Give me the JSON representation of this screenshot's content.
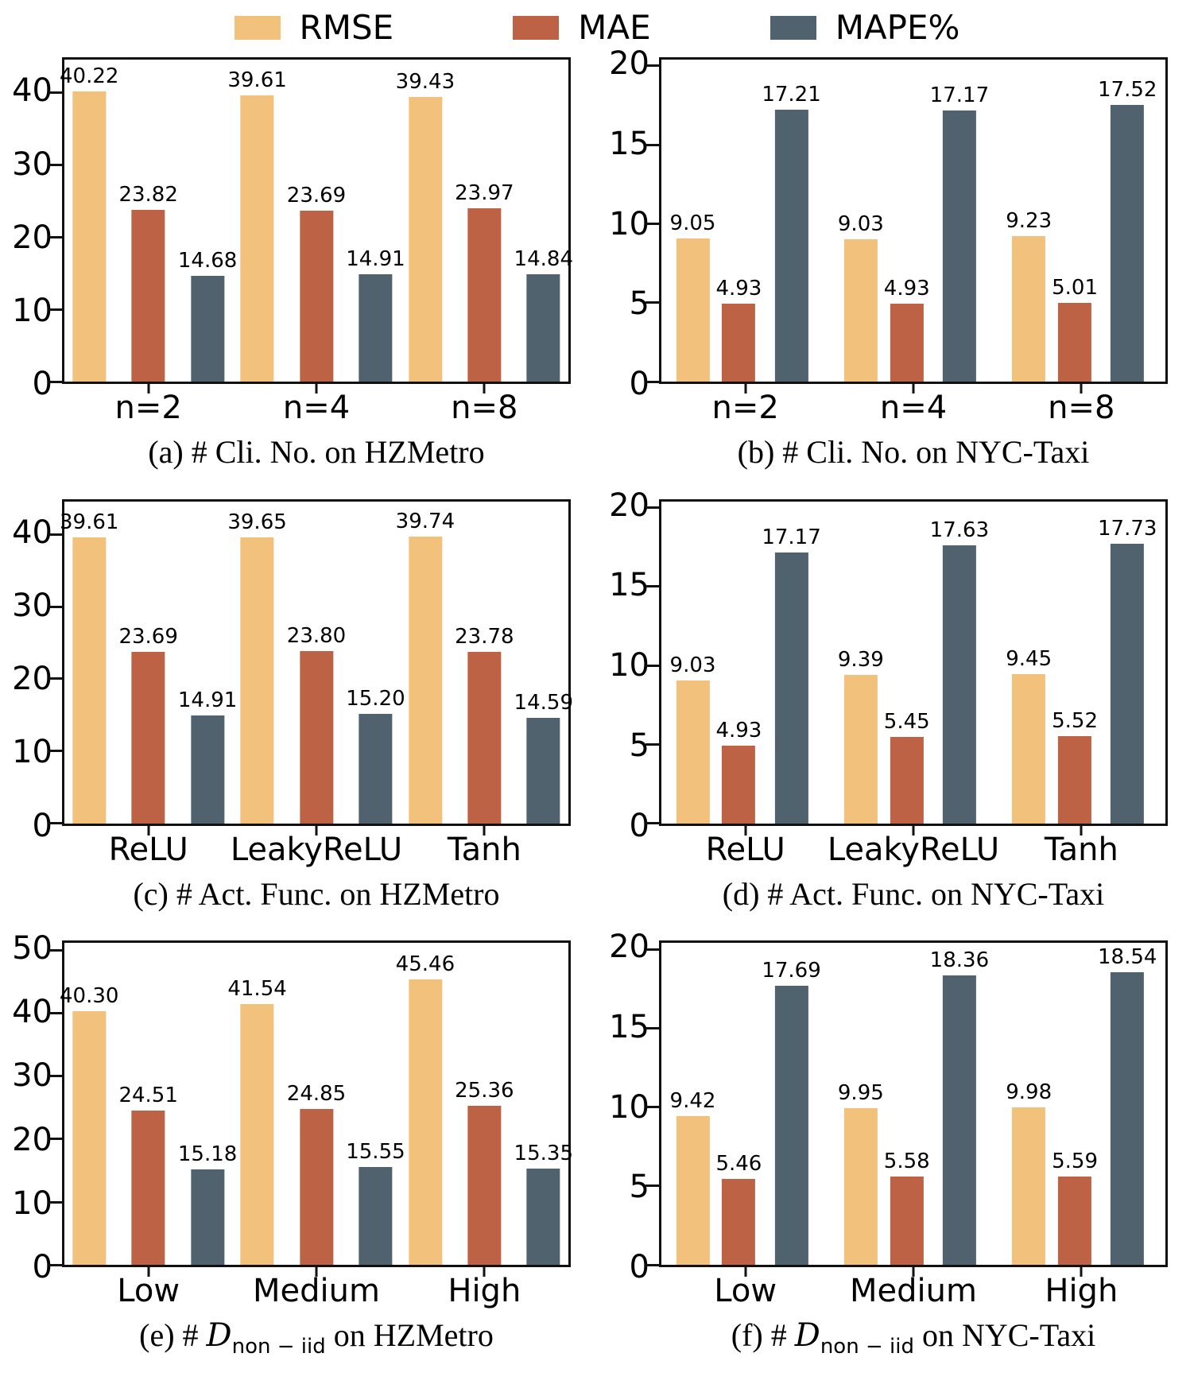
{
  "figure": {
    "background": "#ffffff"
  },
  "legend": {
    "items": [
      {
        "label": "RMSE",
        "color": "#F2C17C"
      },
      {
        "label": "MAE",
        "color": "#BE6246"
      },
      {
        "label": "MAPE%",
        "color": "#51626F"
      }
    ],
    "position": "top-center"
  },
  "chart_data": [
    {
      "id": "a",
      "type": "bar",
      "grid": false,
      "caption": {
        "pre": "(a) # Cli. No. on HZMetro",
        "math": "",
        "sub": "",
        "post": ""
      },
      "categories": [
        "n=2",
        "n=4",
        "n=8"
      ],
      "yticks": [
        "0",
        "10",
        "20",
        "30",
        "40"
      ],
      "ymax": 44.6,
      "ylim": [
        0,
        44.6
      ],
      "series": [
        {
          "name": "RMSE",
          "values": [
            "40.22",
            "39.61",
            "39.43"
          ]
        },
        {
          "name": "MAE",
          "values": [
            "23.82",
            "23.69",
            "23.97"
          ]
        },
        {
          "name": "MAPE%",
          "values": [
            "14.68",
            "14.91",
            "14.84"
          ]
        }
      ]
    },
    {
      "id": "b",
      "type": "bar",
      "grid": false,
      "caption": {
        "pre": "(b) # Cli. No. on NYC-Taxi",
        "math": "",
        "sub": "",
        "post": ""
      },
      "categories": [
        "n=2",
        "n=4",
        "n=8"
      ],
      "yticks": [
        "0",
        "5",
        "10",
        "15",
        "20"
      ],
      "ymax": 20.4,
      "ylim": [
        0,
        20.4
      ],
      "series": [
        {
          "name": "RMSE",
          "values": [
            "9.05",
            "9.03",
            "9.23"
          ]
        },
        {
          "name": "MAE",
          "values": [
            "4.93",
            "4.93",
            "5.01"
          ]
        },
        {
          "name": "MAPE%",
          "values": [
            "17.21",
            "17.17",
            "17.52"
          ]
        }
      ]
    },
    {
      "id": "c",
      "type": "bar",
      "grid": false,
      "caption": {
        "pre": "(c) # Act. Func. on HZMetro",
        "math": "",
        "sub": "",
        "post": ""
      },
      "categories": [
        "ReLU",
        "LeakyReLU",
        "Tanh"
      ],
      "yticks": [
        "0",
        "10",
        "20",
        "30",
        "40"
      ],
      "ymax": 44.6,
      "ylim": [
        0,
        44.6
      ],
      "series": [
        {
          "name": "RMSE",
          "values": [
            "39.61",
            "39.65",
            "39.74"
          ]
        },
        {
          "name": "MAE",
          "values": [
            "23.69",
            "23.80",
            "23.78"
          ]
        },
        {
          "name": "MAPE%",
          "values": [
            "14.91",
            "15.20",
            "14.59"
          ]
        }
      ]
    },
    {
      "id": "d",
      "type": "bar",
      "grid": false,
      "caption": {
        "pre": "(d) # Act. Func. on NYC-Taxi",
        "math": "",
        "sub": "",
        "post": ""
      },
      "categories": [
        "ReLU",
        "LeakyReLU",
        "Tanh"
      ],
      "yticks": [
        "0",
        "5",
        "10",
        "15",
        "20"
      ],
      "ymax": 20.4,
      "ylim": [
        0,
        20.4
      ],
      "series": [
        {
          "name": "RMSE",
          "values": [
            "9.03",
            "9.39",
            "9.45"
          ]
        },
        {
          "name": "MAE",
          "values": [
            "4.93",
            "5.45",
            "5.52"
          ]
        },
        {
          "name": "MAPE%",
          "values": [
            "17.17",
            "17.63",
            "17.73"
          ]
        }
      ]
    },
    {
      "id": "e",
      "type": "bar",
      "grid": false,
      "caption": {
        "pre": "(e) # ",
        "math": "D",
        "sub": "non − iid",
        "post": " on HZMetro"
      },
      "categories": [
        "Low",
        "Medium",
        "High"
      ],
      "yticks": [
        "0",
        "10",
        "20",
        "30",
        "40",
        "50"
      ],
      "ymax": 51.2,
      "ylim": [
        0,
        51.2
      ],
      "series": [
        {
          "name": "RMSE",
          "values": [
            "40.30",
            "41.54",
            "45.46"
          ]
        },
        {
          "name": "MAE",
          "values": [
            "24.51",
            "24.85",
            "25.36"
          ]
        },
        {
          "name": "MAPE%",
          "values": [
            "15.18",
            "15.55",
            "15.35"
          ]
        }
      ]
    },
    {
      "id": "f",
      "type": "bar",
      "grid": false,
      "caption": {
        "pre": "(f) # ",
        "math": "D",
        "sub": "non − iid",
        "post": " on NYC-Taxi"
      },
      "categories": [
        "Low",
        "Medium",
        "High"
      ],
      "yticks": [
        "0",
        "5",
        "10",
        "15",
        "20"
      ],
      "ymax": 20.4,
      "ylim": [
        0,
        20.4
      ],
      "series": [
        {
          "name": "RMSE",
          "values": [
            "9.42",
            "9.95",
            "9.98"
          ]
        },
        {
          "name": "MAE",
          "values": [
            "5.46",
            "5.58",
            "5.59"
          ]
        },
        {
          "name": "MAPE%",
          "values": [
            "17.69",
            "18.36",
            "18.54"
          ]
        }
      ]
    }
  ]
}
